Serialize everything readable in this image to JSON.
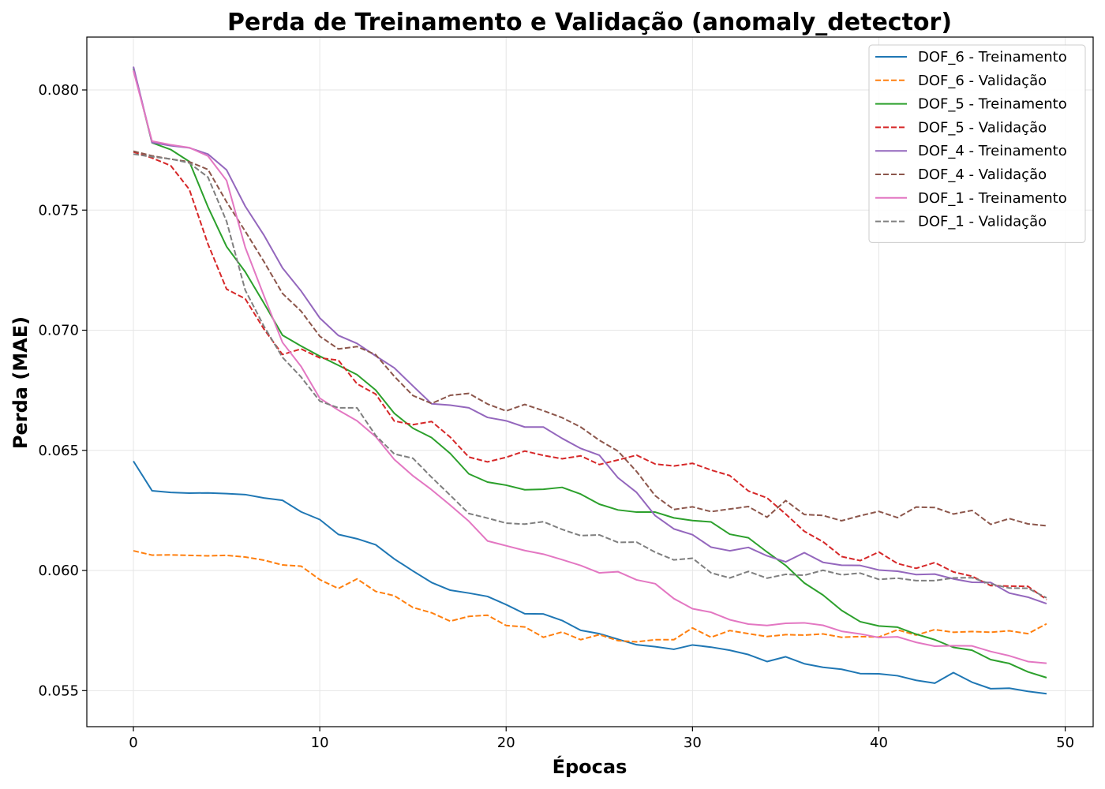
{
  "chart_data": {
    "type": "line",
    "title": "Perda de Treinamento e Validação (anomaly_detector)",
    "xlabel": "Épocas",
    "ylabel": "Perda (MAE)",
    "xlim": [
      -2.5,
      51.5
    ],
    "ylim": [
      0.0535,
      0.0822
    ],
    "xticks": [
      0,
      10,
      20,
      30,
      40,
      50
    ],
    "yticks": [
      0.055,
      0.06,
      0.065,
      0.07,
      0.075,
      0.08
    ],
    "xtick_labels": [
      "0",
      "10",
      "20",
      "30",
      "40",
      "50"
    ],
    "ytick_labels": [
      "0.055",
      "0.060",
      "0.065",
      "0.070",
      "0.075",
      "0.080"
    ],
    "grid": true,
    "legend_position": "top-right",
    "series": [
      {
        "name": "DOF_6 - Treinamento",
        "color": "#1f77b4",
        "dash": "solid",
        "values": [
          0.06455,
          0.06332,
          0.06325,
          0.06322,
          0.06323,
          0.0632,
          0.06316,
          0.06302,
          0.06292,
          0.06244,
          0.06212,
          0.0615,
          0.06132,
          0.06107,
          0.06048,
          0.05998,
          0.0595,
          0.05918,
          0.05906,
          0.05892,
          0.05858,
          0.0582,
          0.05819,
          0.05792,
          0.05751,
          0.05737,
          0.05714,
          0.05691,
          0.05683,
          0.05672,
          0.0569,
          0.05681,
          0.05668,
          0.0565,
          0.05621,
          0.05641,
          0.05612,
          0.05597,
          0.05589,
          0.05571,
          0.0557,
          0.05562,
          0.05543,
          0.05531,
          0.05575,
          0.05535,
          0.05508,
          0.0551,
          0.05497,
          0.05487
        ]
      },
      {
        "name": "DOF_6 - Validação",
        "color": "#ff7f0e",
        "dash": "dashed",
        "values": [
          0.06082,
          0.06064,
          0.06065,
          0.06063,
          0.06061,
          0.06063,
          0.06056,
          0.06043,
          0.06023,
          0.06018,
          0.05962,
          0.05925,
          0.05965,
          0.05913,
          0.05895,
          0.05846,
          0.05824,
          0.05789,
          0.05809,
          0.05814,
          0.05771,
          0.05765,
          0.05722,
          0.05744,
          0.05712,
          0.05733,
          0.05708,
          0.05703,
          0.05712,
          0.05712,
          0.05761,
          0.05722,
          0.0575,
          0.05737,
          0.05725,
          0.05733,
          0.05731,
          0.05736,
          0.05722,
          0.05725,
          0.05723,
          0.05753,
          0.05731,
          0.05754,
          0.05743,
          0.05746,
          0.05743,
          0.05749,
          0.05737,
          0.05778
        ]
      },
      {
        "name": "DOF_5 - Treinamento",
        "color": "#2ca02c",
        "dash": "solid",
        "values": [
          0.0809,
          0.0778,
          0.07752,
          0.07702,
          0.07513,
          0.07348,
          0.07243,
          0.07113,
          0.06979,
          0.06934,
          0.06892,
          0.06854,
          0.06815,
          0.06751,
          0.06654,
          0.06592,
          0.06553,
          0.06487,
          0.06402,
          0.06368,
          0.06355,
          0.06336,
          0.06338,
          0.06346,
          0.06318,
          0.06276,
          0.06252,
          0.06243,
          0.06243,
          0.06219,
          0.06208,
          0.06202,
          0.06151,
          0.06136,
          0.06077,
          0.06021,
          0.05948,
          0.05898,
          0.05834,
          0.05787,
          0.05769,
          0.05764,
          0.05735,
          0.05712,
          0.0568,
          0.05668,
          0.05629,
          0.05613,
          0.05578,
          0.05554
        ]
      },
      {
        "name": "DOF_5 - Validação",
        "color": "#d62728",
        "dash": "dashed",
        "values": [
          0.07742,
          0.07717,
          0.07685,
          0.07586,
          0.07359,
          0.07171,
          0.07131,
          0.07005,
          0.06899,
          0.06922,
          0.06885,
          0.06875,
          0.06777,
          0.06734,
          0.06622,
          0.06607,
          0.0662,
          0.06555,
          0.06472,
          0.06452,
          0.06471,
          0.06497,
          0.06479,
          0.06465,
          0.06477,
          0.06441,
          0.0646,
          0.0648,
          0.06443,
          0.06435,
          0.06446,
          0.06418,
          0.06395,
          0.06331,
          0.06302,
          0.06235,
          0.06163,
          0.0612,
          0.06058,
          0.06041,
          0.06077,
          0.06029,
          0.06009,
          0.06033,
          0.05994,
          0.05976,
          0.05937,
          0.05935,
          0.05934,
          0.05879
        ]
      },
      {
        "name": "DOF_4 - Treinamento",
        "color": "#9467bd",
        "dash": "solid",
        "values": [
          0.08097,
          0.07781,
          0.07768,
          0.07759,
          0.07733,
          0.07667,
          0.07516,
          0.07396,
          0.07259,
          0.07163,
          0.07051,
          0.06978,
          0.06945,
          0.06893,
          0.06843,
          0.06768,
          0.06694,
          0.06688,
          0.06677,
          0.06637,
          0.06623,
          0.06597,
          0.06597,
          0.0655,
          0.06508,
          0.0648,
          0.06386,
          0.06325,
          0.06228,
          0.06173,
          0.06149,
          0.06097,
          0.06082,
          0.06096,
          0.06061,
          0.06036,
          0.06074,
          0.06034,
          0.06022,
          0.06021,
          0.06002,
          0.05997,
          0.05983,
          0.05985,
          0.05965,
          0.05951,
          0.0595,
          0.05906,
          0.05889,
          0.05862
        ]
      },
      {
        "name": "DOF_4 - Validação",
        "color": "#8c564b",
        "dash": "dashed",
        "values": [
          0.07745,
          0.07726,
          0.07712,
          0.07701,
          0.07669,
          0.07534,
          0.07412,
          0.07286,
          0.07153,
          0.07079,
          0.06975,
          0.06922,
          0.06932,
          0.06898,
          0.06808,
          0.06728,
          0.06695,
          0.06729,
          0.06737,
          0.06693,
          0.06664,
          0.06691,
          0.06665,
          0.06636,
          0.06597,
          0.06542,
          0.06497,
          0.06412,
          0.06311,
          0.06254,
          0.06265,
          0.06245,
          0.06256,
          0.06266,
          0.06222,
          0.06291,
          0.06233,
          0.06229,
          0.06207,
          0.06228,
          0.06246,
          0.0622,
          0.06264,
          0.06262,
          0.06235,
          0.0625,
          0.06192,
          0.06216,
          0.06194,
          0.06186
        ]
      },
      {
        "name": "DOF_1 - Treinamento",
        "color": "#e377c2",
        "dash": "solid",
        "values": [
          0.0808,
          0.07787,
          0.07772,
          0.0776,
          0.07725,
          0.07623,
          0.07345,
          0.07144,
          0.06949,
          0.06849,
          0.06717,
          0.06667,
          0.06623,
          0.06557,
          0.06462,
          0.06394,
          0.06336,
          0.06272,
          0.06205,
          0.06123,
          0.06103,
          0.06083,
          0.06068,
          0.06045,
          0.06021,
          0.0599,
          0.05995,
          0.05961,
          0.05945,
          0.05883,
          0.05841,
          0.05826,
          0.05795,
          0.05777,
          0.05771,
          0.0578,
          0.05782,
          0.05772,
          0.05747,
          0.05736,
          0.05721,
          0.05724,
          0.05701,
          0.05685,
          0.05687,
          0.05686,
          0.05663,
          0.05645,
          0.05621,
          0.05614
        ]
      },
      {
        "name": "DOF_1 - Validação",
        "color": "#7f7f7f",
        "dash": "dashed",
        "values": [
          0.07733,
          0.07722,
          0.07713,
          0.07696,
          0.07637,
          0.07453,
          0.07167,
          0.07017,
          0.06887,
          0.06805,
          0.06705,
          0.06677,
          0.06677,
          0.06562,
          0.06485,
          0.06467,
          0.06388,
          0.06313,
          0.06237,
          0.06218,
          0.06197,
          0.06193,
          0.06203,
          0.06171,
          0.06145,
          0.06148,
          0.06117,
          0.06118,
          0.06076,
          0.06044,
          0.06051,
          0.0599,
          0.05969,
          0.05996,
          0.05968,
          0.05984,
          0.0598,
          0.06001,
          0.05982,
          0.05989,
          0.05963,
          0.05968,
          0.05958,
          0.05958,
          0.05969,
          0.0597,
          0.05944,
          0.05927,
          0.05926,
          0.05886
        ]
      }
    ]
  }
}
